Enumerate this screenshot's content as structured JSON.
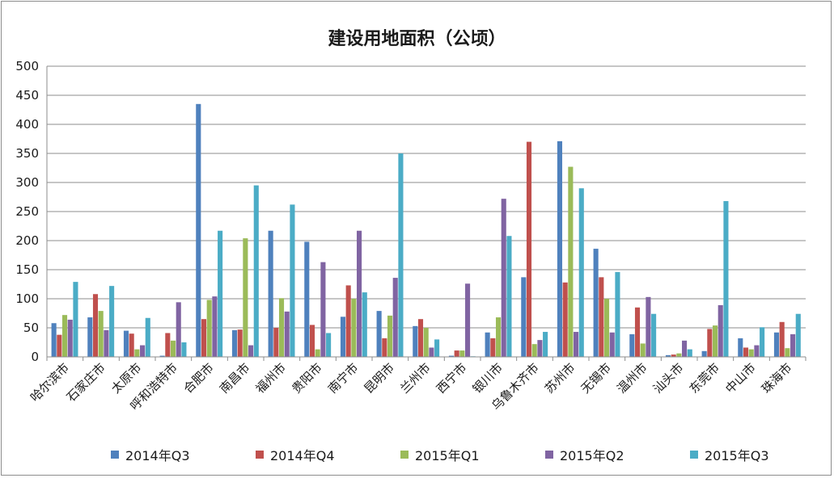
{
  "chart_data": {
    "type": "bar",
    "title": "建设用地面积（公顷）",
    "xlabel": "",
    "ylabel": "",
    "ylim": [
      0,
      500
    ],
    "yticks": [
      0,
      50,
      100,
      150,
      200,
      250,
      300,
      350,
      400,
      450,
      500
    ],
    "grid": true,
    "legend_position": "bottom",
    "categories": [
      "哈尔滨市",
      "石家庄市",
      "太原市",
      "呼和浩特市",
      "合肥市",
      "南昌市",
      "福州市",
      "贵阳市",
      "南宁市",
      "昆明市",
      "兰州市",
      "西宁市",
      "银川市",
      "乌鲁木齐市",
      "苏州市",
      "无锡市",
      "温州市",
      "汕头市",
      "东莞市",
      "中山市",
      "珠海市"
    ],
    "series": [
      {
        "name": "2014年Q3",
        "color": "#4F81BD",
        "values": [
          58,
          68,
          45,
          2,
          435,
          46,
          217,
          198,
          69,
          79,
          53,
          2,
          42,
          137,
          371,
          186,
          39,
          3,
          10,
          32,
          42
        ]
      },
      {
        "name": "2014年Q4",
        "color": "#C0504D",
        "values": [
          38,
          108,
          40,
          41,
          65,
          47,
          50,
          55,
          123,
          32,
          65,
          11,
          32,
          370,
          128,
          137,
          85,
          4,
          48,
          16,
          60
        ]
      },
      {
        "name": "2015年Q1",
        "color": "#9BBB59",
        "values": [
          72,
          79,
          13,
          28,
          98,
          204,
          101,
          13,
          100,
          71,
          50,
          11,
          68,
          22,
          327,
          100,
          23,
          6,
          54,
          13,
          15
        ]
      },
      {
        "name": "2015年Q2",
        "color": "#8064A2",
        "values": [
          64,
          46,
          20,
          94,
          104,
          20,
          78,
          163,
          217,
          136,
          16,
          126,
          272,
          29,
          43,
          42,
          103,
          28,
          89,
          20,
          39
        ]
      },
      {
        "name": "2015年Q3",
        "color": "#4BACC6",
        "values": [
          129,
          122,
          67,
          25,
          217,
          295,
          262,
          41,
          111,
          350,
          30,
          1,
          208,
          43,
          290,
          146,
          74,
          13,
          268,
          51,
          74
        ]
      }
    ]
  }
}
